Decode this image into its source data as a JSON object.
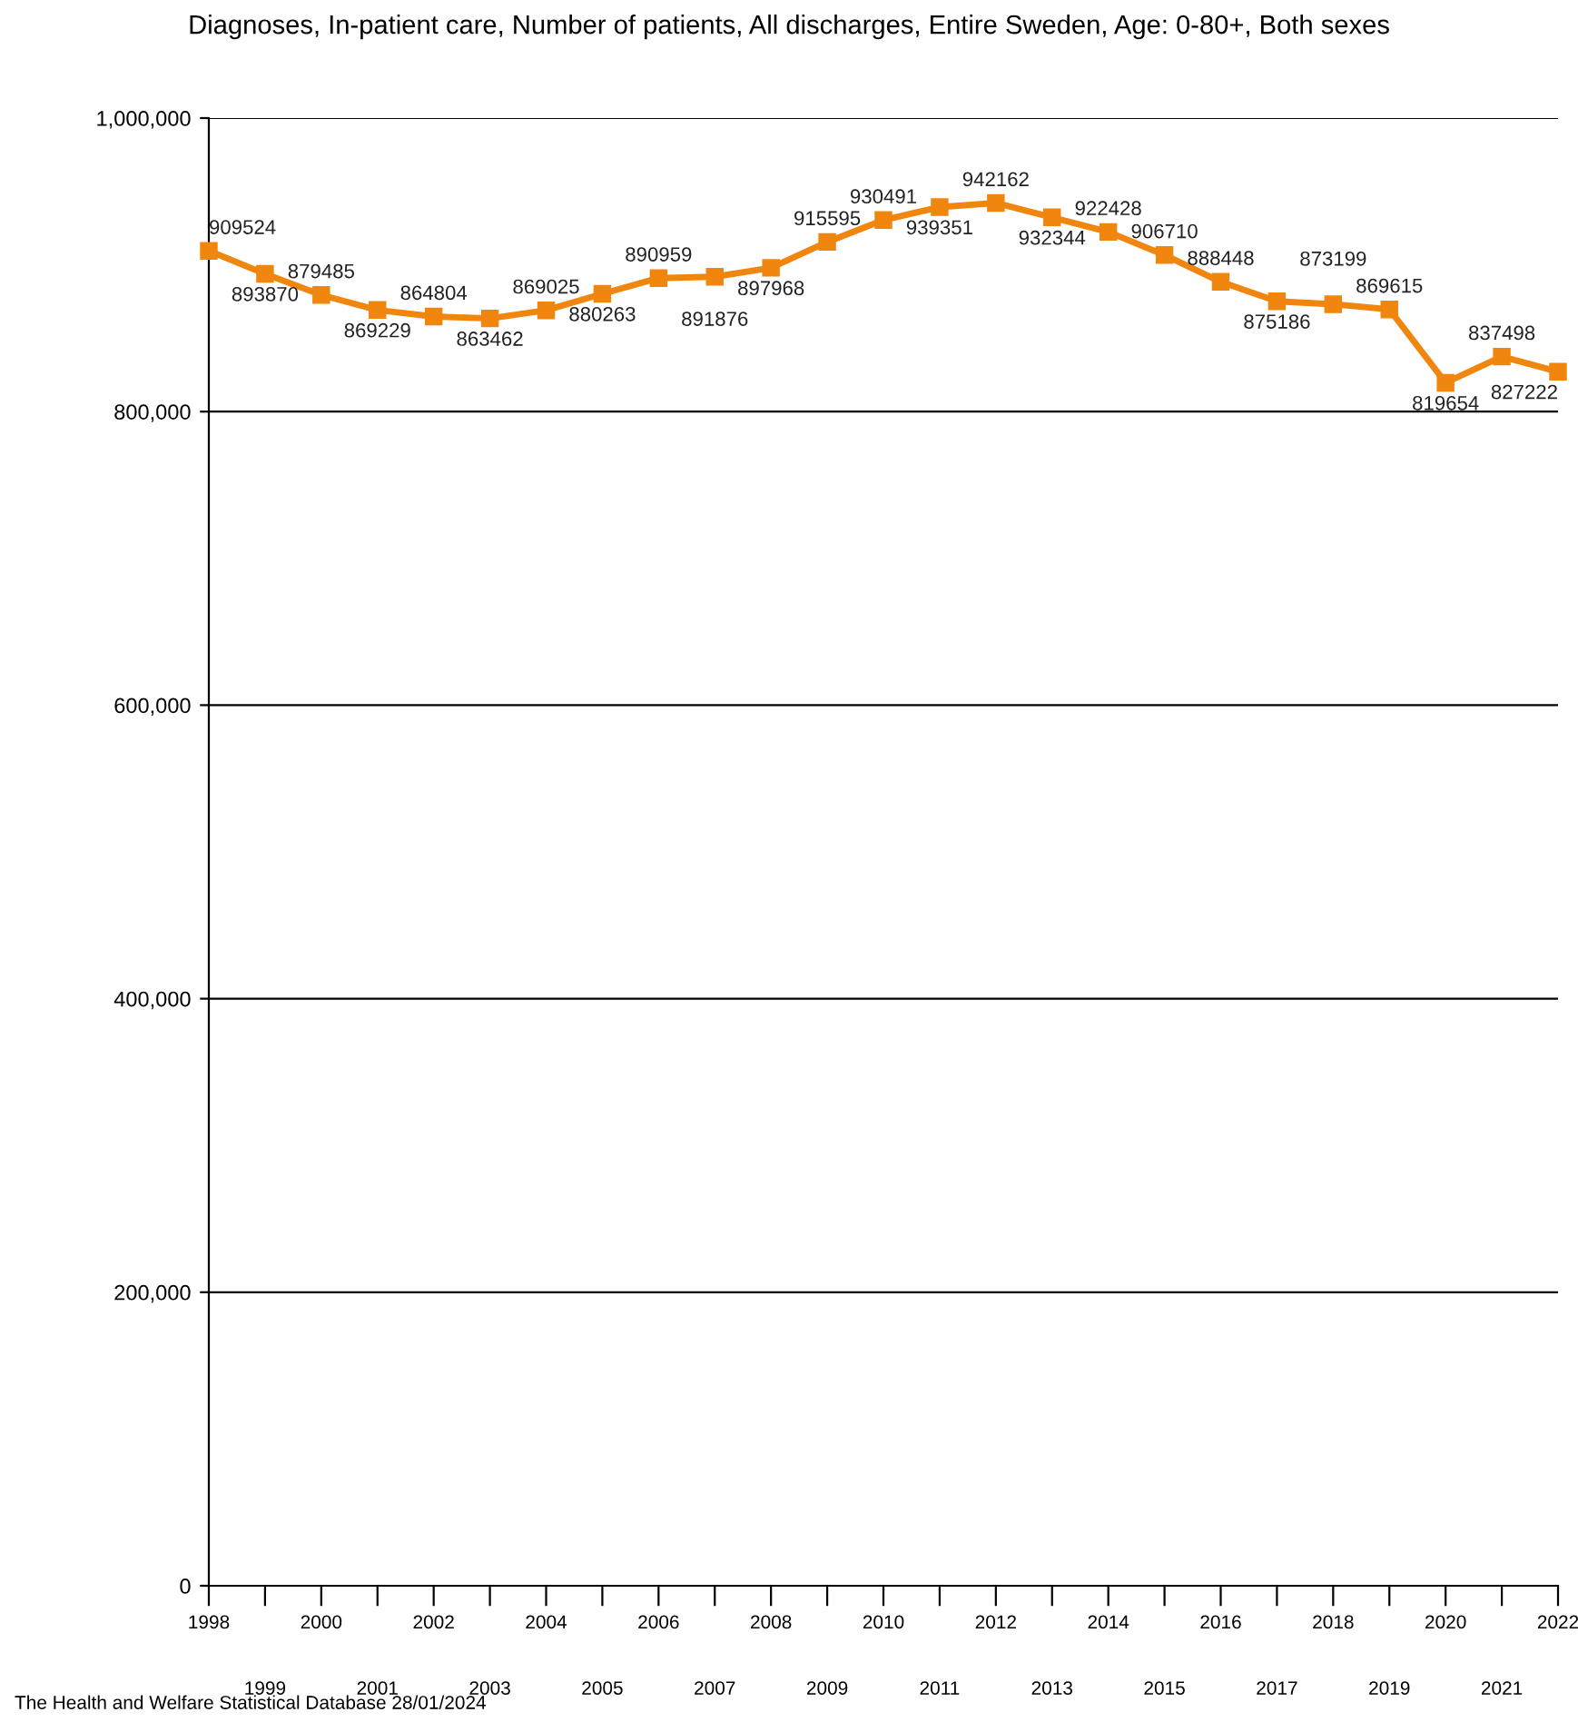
{
  "chart_data": {
    "type": "line",
    "title": "Diagnoses, In-patient care, Number of patients, All discharges, Entire Sweden, Age: 0-80+, Both sexes",
    "categories": [
      "1998",
      "1999",
      "2000",
      "2001",
      "2002",
      "2003",
      "2004",
      "2005",
      "2006",
      "2007",
      "2008",
      "2009",
      "2010",
      "2011",
      "2012",
      "2013",
      "2014",
      "2015",
      "2016",
      "2017",
      "2018",
      "2019",
      "2020",
      "2021",
      "2022"
    ],
    "series": [
      {
        "color": "#f0860e",
        "values": [
          909524,
          893870,
          879485,
          869229,
          864804,
          863462,
          869025,
          880263,
          890959,
          891876,
          897968,
          915595,
          930491,
          939351,
          942162,
          932344,
          922428,
          906710,
          888448,
          875186,
          873199,
          869615,
          819654,
          837498,
          827222
        ]
      }
    ],
    "ylim": [
      0,
      1000000
    ],
    "yticks": [
      {
        "value": 0,
        "label": "0"
      },
      {
        "value": 200000,
        "label": "200,000"
      },
      {
        "value": 400000,
        "label": "400,000"
      },
      {
        "value": 600000,
        "label": "600,000"
      },
      {
        "value": 800000,
        "label": "800,000"
      },
      {
        "value": 1000000,
        "label": "1,000,000"
      }
    ],
    "grid": "y",
    "marker": "square",
    "line_style": "solid",
    "data_labels": true,
    "annotations": [
      "The Health and Welfare Statistical Database 28/01/2024"
    ]
  }
}
